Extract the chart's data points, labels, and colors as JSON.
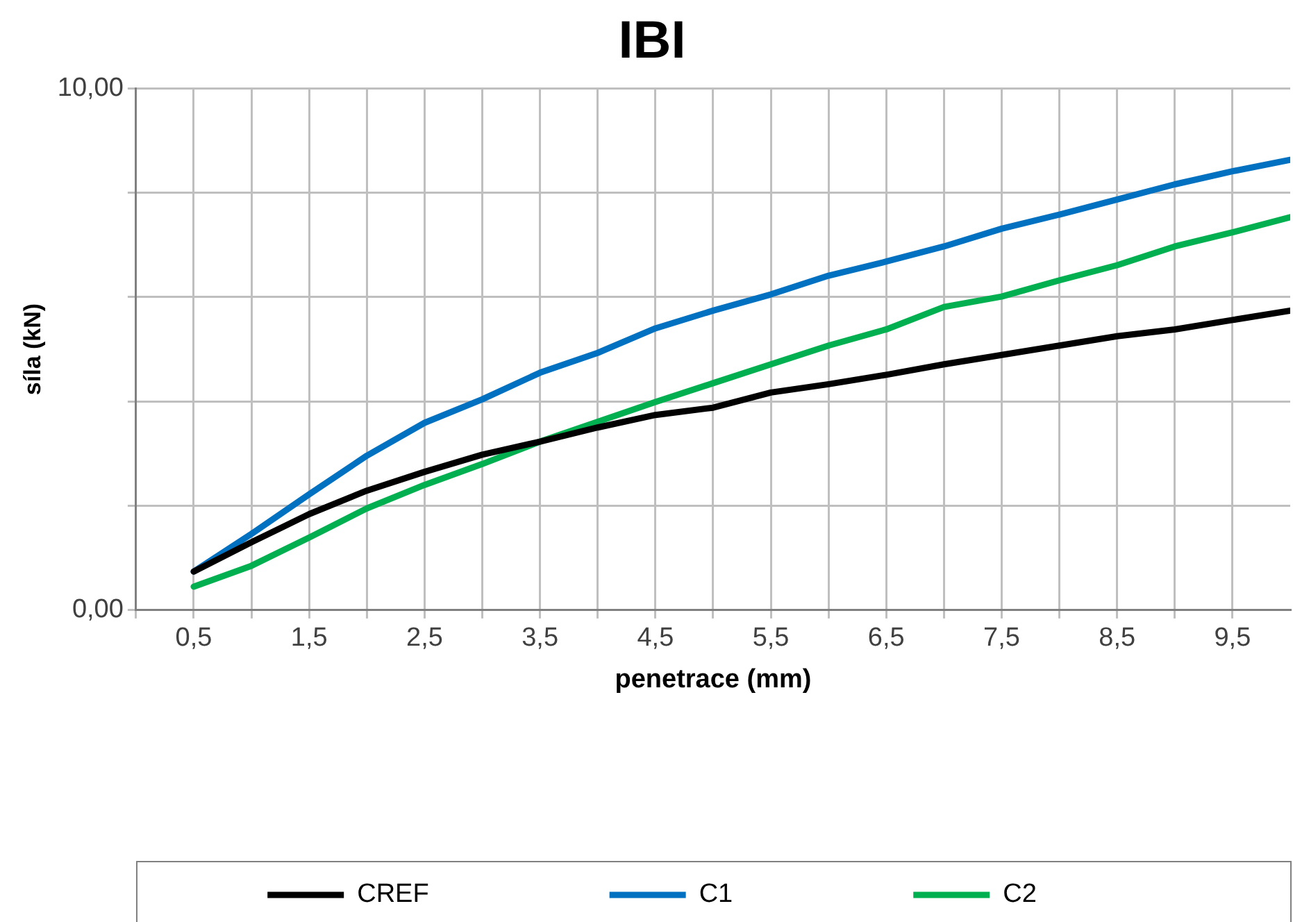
{
  "chart_data": {
    "type": "line",
    "title": "IBI",
    "xlabel": "penetrace (mm)",
    "ylabel": "síla (kN)",
    "x": [
      0.5,
      1,
      1.5,
      2,
      2.5,
      3,
      3.5,
      4,
      4.5,
      5,
      5.5,
      6,
      6.5,
      7,
      7.5,
      8,
      8.5,
      9,
      9.5,
      10
    ],
    "series": [
      {
        "name": "CREF",
        "color": "#000000",
        "values": [
          0.74,
          1.3,
          1.84,
          2.29,
          2.65,
          2.98,
          3.23,
          3.5,
          3.74,
          3.88,
          4.17,
          4.33,
          4.51,
          4.71,
          4.89,
          5.07,
          5.25,
          5.38,
          5.56,
          5.74
        ]
      },
      {
        "name": "C1",
        "color": "#0070c0",
        "values": [
          0.74,
          1.46,
          2.22,
          2.96,
          3.59,
          4.04,
          4.55,
          4.93,
          5.4,
          5.74,
          6.05,
          6.41,
          6.68,
          6.97,
          7.31,
          7.58,
          7.87,
          8.16,
          8.41,
          8.63
        ]
      },
      {
        "name": "C2",
        "color": "#00b050",
        "values": [
          0.45,
          0.85,
          1.39,
          1.95,
          2.4,
          2.8,
          3.23,
          3.61,
          3.99,
          4.35,
          4.71,
          5.07,
          5.38,
          5.81,
          6.01,
          6.32,
          6.61,
          6.97,
          7.24,
          7.53
        ]
      }
    ],
    "xlim": [
      0,
      10
    ],
    "xticks": [
      {
        "value": 0,
        "label": null
      },
      {
        "value": 0.5,
        "label": "0,5"
      },
      {
        "value": 1,
        "label": null
      },
      {
        "value": 1.5,
        "label": "1,5"
      },
      {
        "value": 2,
        "label": null
      },
      {
        "value": 2.5,
        "label": "2,5"
      },
      {
        "value": 3,
        "label": null
      },
      {
        "value": 3.5,
        "label": "3,5"
      },
      {
        "value": 4,
        "label": null
      },
      {
        "value": 4.5,
        "label": "4,5"
      },
      {
        "value": 5,
        "label": null
      },
      {
        "value": 5.5,
        "label": "5,5"
      },
      {
        "value": 6,
        "label": null
      },
      {
        "value": 6.5,
        "label": "6,5"
      },
      {
        "value": 7,
        "label": null
      },
      {
        "value": 7.5,
        "label": "7,5"
      },
      {
        "value": 8,
        "label": null
      },
      {
        "value": 8.5,
        "label": "8,5"
      },
      {
        "value": 9,
        "label": null
      },
      {
        "value": 9.5,
        "label": "9,5"
      }
    ],
    "ylim": [
      0,
      10
    ],
    "yticks": [
      {
        "value": 0,
        "label": "0,00"
      },
      {
        "value": 2,
        "label": null
      },
      {
        "value": 4,
        "label": null
      },
      {
        "value": 6,
        "label": null
      },
      {
        "value": 8,
        "label": null
      },
      {
        "value": 10,
        "label": "10,00"
      }
    ],
    "grid": true,
    "legend": "bottom",
    "marker": "none",
    "line_style": "solid"
  }
}
